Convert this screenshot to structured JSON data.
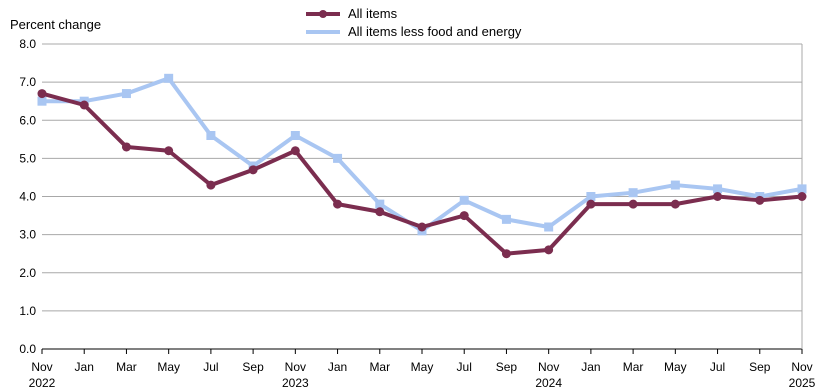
{
  "chart_data": {
    "type": "line",
    "ylabel": "Percent change",
    "ylim": [
      0,
      8
    ],
    "yticks": [
      "0.0",
      "1.0",
      "2.0",
      "3.0",
      "4.0",
      "5.0",
      "6.0",
      "7.0",
      "8.0"
    ],
    "grid": true,
    "legend_position": "top-center",
    "x_tick_labels": [
      "Nov",
      "Jan",
      "Mar",
      "May",
      "Jul",
      "Sep",
      "Nov",
      "Jan",
      "Mar",
      "May",
      "Jul",
      "Sep",
      "Nov",
      "Jan",
      "Mar",
      "May",
      "Jul",
      "Sep",
      "Nov"
    ],
    "x_year_labels": [
      {
        "tick_index": 0,
        "label": "2022"
      },
      {
        "tick_index": 6,
        "label": "2023"
      },
      {
        "tick_index": 12,
        "label": "2024"
      },
      {
        "tick_index": 18,
        "label": "2025"
      }
    ],
    "series": [
      {
        "name": "All items",
        "color": "#7b2d4f",
        "marker": "circle",
        "values": [
          6.7,
          6.4,
          5.3,
          5.2,
          4.3,
          4.7,
          5.2,
          3.8,
          3.6,
          3.2,
          3.5,
          2.5,
          2.6,
          3.8,
          3.8,
          3.8,
          4.0,
          3.9,
          4.0
        ]
      },
      {
        "name": "All items less food and energy",
        "color": "#a9c6f2",
        "marker": "square",
        "values": [
          6.5,
          6.5,
          6.7,
          7.1,
          5.6,
          4.8,
          5.6,
          5.0,
          3.8,
          3.1,
          3.9,
          3.4,
          3.2,
          4.0,
          4.1,
          4.3,
          4.2,
          4.0,
          4.2
        ]
      }
    ]
  }
}
